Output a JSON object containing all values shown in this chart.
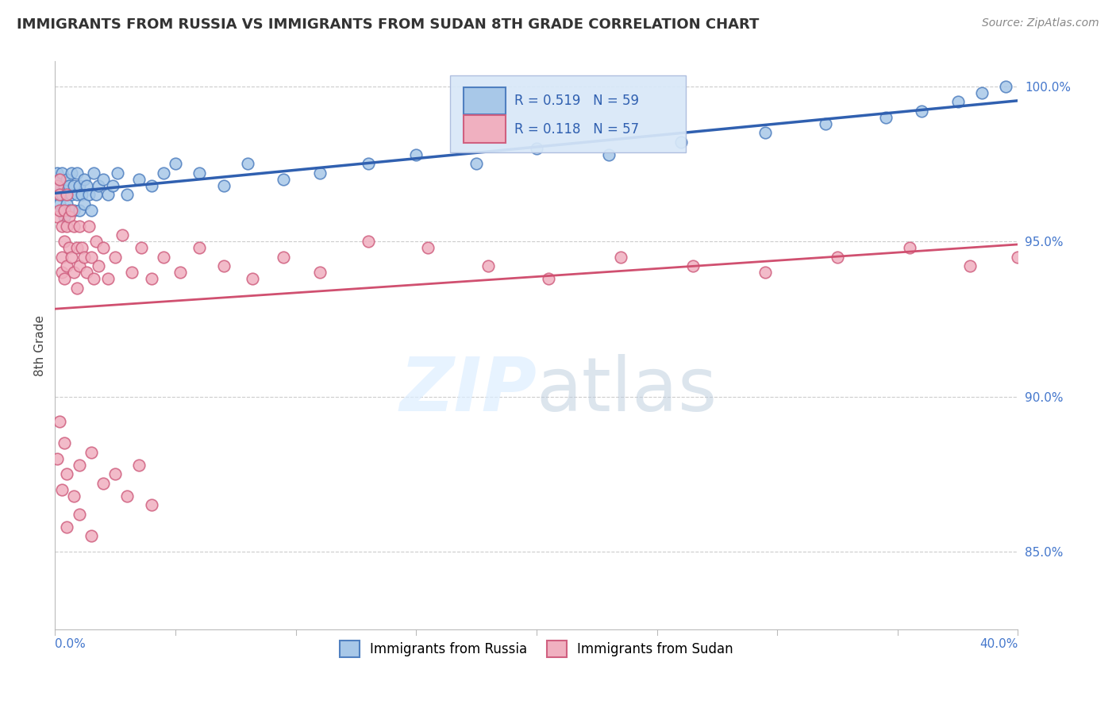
{
  "title": "IMMIGRANTS FROM RUSSIA VS IMMIGRANTS FROM SUDAN 8TH GRADE CORRELATION CHART",
  "source": "Source: ZipAtlas.com",
  "ylabel": "8th Grade",
  "r_russia": 0.519,
  "n_russia": 59,
  "r_sudan": 0.118,
  "n_sudan": 57,
  "russia_color": "#a8c8e8",
  "russia_edge_color": "#5080c0",
  "sudan_color": "#f0b0c0",
  "sudan_edge_color": "#d06080",
  "russia_line_color": "#3060b0",
  "sudan_line_color": "#d05070",
  "legend_label_russia": "Immigrants from Russia",
  "legend_label_sudan": "Immigrants from Sudan",
  "xlim": [
    0.0,
    0.4
  ],
  "ylim": [
    0.825,
    1.008
  ],
  "ytick_vals": [
    1.0,
    0.95,
    0.9,
    0.85
  ],
  "ytick_labels": [
    "100.0%",
    "95.0%",
    "90.0%",
    "85.0%"
  ],
  "russia_x": [
    0.001,
    0.001,
    0.002,
    0.002,
    0.002,
    0.003,
    0.003,
    0.003,
    0.004,
    0.004,
    0.005,
    0.005,
    0.005,
    0.006,
    0.006,
    0.007,
    0.007,
    0.008,
    0.008,
    0.009,
    0.009,
    0.01,
    0.01,
    0.011,
    0.012,
    0.012,
    0.013,
    0.014,
    0.015,
    0.016,
    0.017,
    0.018,
    0.02,
    0.022,
    0.024,
    0.026,
    0.03,
    0.035,
    0.04,
    0.045,
    0.05,
    0.06,
    0.07,
    0.08,
    0.095,
    0.11,
    0.13,
    0.15,
    0.175,
    0.2,
    0.23,
    0.26,
    0.295,
    0.32,
    0.345,
    0.36,
    0.375,
    0.385,
    0.395
  ],
  "russia_y": [
    0.972,
    0.965,
    0.968,
    0.962,
    0.97,
    0.965,
    0.96,
    0.972,
    0.968,
    0.958,
    0.965,
    0.97,
    0.962,
    0.968,
    0.96,
    0.972,
    0.965,
    0.968,
    0.96,
    0.965,
    0.972,
    0.96,
    0.968,
    0.965,
    0.97,
    0.962,
    0.968,
    0.965,
    0.96,
    0.972,
    0.965,
    0.968,
    0.97,
    0.965,
    0.968,
    0.972,
    0.965,
    0.97,
    0.968,
    0.972,
    0.975,
    0.972,
    0.968,
    0.975,
    0.97,
    0.972,
    0.975,
    0.978,
    0.975,
    0.98,
    0.978,
    0.982,
    0.985,
    0.988,
    0.99,
    0.992,
    0.995,
    0.998,
    1.0
  ],
  "sudan_x": [
    0.001,
    0.001,
    0.002,
    0.002,
    0.002,
    0.003,
    0.003,
    0.003,
    0.004,
    0.004,
    0.004,
    0.005,
    0.005,
    0.005,
    0.006,
    0.006,
    0.007,
    0.007,
    0.008,
    0.008,
    0.009,
    0.009,
    0.01,
    0.01,
    0.011,
    0.012,
    0.013,
    0.014,
    0.015,
    0.016,
    0.017,
    0.018,
    0.02,
    0.022,
    0.025,
    0.028,
    0.032,
    0.036,
    0.04,
    0.045,
    0.052,
    0.06,
    0.07,
    0.082,
    0.095,
    0.11,
    0.13,
    0.155,
    0.18,
    0.205,
    0.235,
    0.265,
    0.295,
    0.325,
    0.355,
    0.38,
    0.4
  ],
  "sudan_y": [
    0.968,
    0.958,
    0.97,
    0.96,
    0.965,
    0.945,
    0.955,
    0.94,
    0.96,
    0.95,
    0.938,
    0.965,
    0.955,
    0.942,
    0.958,
    0.948,
    0.96,
    0.945,
    0.955,
    0.94,
    0.948,
    0.935,
    0.955,
    0.942,
    0.948,
    0.945,
    0.94,
    0.955,
    0.945,
    0.938,
    0.95,
    0.942,
    0.948,
    0.938,
    0.945,
    0.952,
    0.94,
    0.948,
    0.938,
    0.945,
    0.94,
    0.948,
    0.942,
    0.938,
    0.945,
    0.94,
    0.95,
    0.948,
    0.942,
    0.938,
    0.945,
    0.942,
    0.94,
    0.945,
    0.948,
    0.942,
    0.945
  ],
  "sudan_outliers_x": [
    0.001,
    0.002,
    0.003,
    0.004,
    0.005,
    0.008,
    0.01,
    0.015,
    0.02,
    0.025,
    0.03,
    0.035,
    0.04,
    0.005,
    0.01,
    0.015
  ],
  "sudan_outliers_y": [
    0.88,
    0.892,
    0.87,
    0.885,
    0.875,
    0.868,
    0.878,
    0.882,
    0.872,
    0.875,
    0.868,
    0.878,
    0.865,
    0.858,
    0.862,
    0.855
  ]
}
